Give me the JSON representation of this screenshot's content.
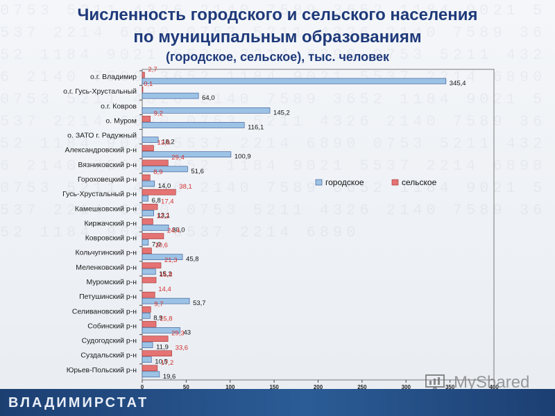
{
  "title": {
    "line1": "Численность городского и сельского населения",
    "line2": "по муниципальным образованиям",
    "line3": "(городское, сельское), тыс. человек"
  },
  "footer": {
    "brand": "ВЛАДИМИРСТАТ"
  },
  "watermark": {
    "text": "MyShared",
    "icon": "presentation-board-icon"
  },
  "colors": {
    "urban": "#9cc3e6",
    "urban_stroke": "#2f4e8a",
    "rural": "#e57373",
    "rural_stroke": "#a03030",
    "rural_label": "#d32f2f",
    "title": "#1f3a7a"
  },
  "chart_data": {
    "type": "bar",
    "orientation": "horizontal",
    "xlim": [
      0,
      400
    ],
    "xticks": [
      "0",
      "50",
      "100",
      "150",
      "200",
      "250",
      "300",
      "350",
      "400"
    ],
    "legend_position": "right-middle",
    "categories": [
      "о.г. Владимир",
      "о.г. Гусь-Хрустальный",
      "о.г. Ковров",
      "о. Муром",
      "о. ЗАТО г. Радужный",
      "Александровский р-н",
      "Вязниковский р-н",
      "Гороховецкий р-н",
      "Гусь-Хрустальный р-н",
      "Камешковский р-н",
      "Киржачский р-н",
      "Ковровский р-н",
      "Кольчугинский р-н",
      "Меленковский р-н",
      "Муромский р-н",
      "Петушинский р-н",
      "Селивановский р-н",
      "Собинский р-н",
      "Судогодский р-н",
      "Суздальский р-н",
      "Юрьев-Польский р-н"
    ],
    "series": [
      {
        "name": "городское",
        "values": [
          345.4,
          64.0,
          145.2,
          116.1,
          18.2,
          100.9,
          51.6,
          14.0,
          6.8,
          13.1,
          30.0,
          7.0,
          45.8,
          15.2,
          0,
          53.7,
          8.9,
          43,
          11.9,
          10.5,
          19.6
        ],
        "labels": [
          "345,4",
          "64,0",
          "145,2",
          "116,1",
          "18,2",
          "100,9",
          "51,6",
          "14,0",
          "6,8",
          "13,1",
          "30,0",
          "7,0",
          "45,8",
          "15,2",
          "",
          "53,7",
          "8,9",
          "43",
          "11,9",
          "10,5",
          "19,6"
        ]
      },
      {
        "name": "сельское",
        "values": [
          2.7,
          0.1,
          0,
          9.2,
          0,
          13.0,
          29.4,
          8.9,
          38.1,
          17.4,
          12.2,
          24.4,
          10.6,
          21.3,
          15.8,
          14.4,
          9.7,
          15.8,
          29.3,
          33.6,
          17.2
        ],
        "labels": [
          "2,7",
          "0,1",
          "",
          "9,2",
          "",
          "13,0",
          "29,4",
          "8,9",
          "38,1",
          "17,4",
          "12,2",
          "24,4",
          "10,6",
          "21,3",
          "15,8",
          "14,4",
          "9,7",
          "15,8",
          "29,3",
          "33,6",
          "17,2"
        ]
      }
    ]
  }
}
